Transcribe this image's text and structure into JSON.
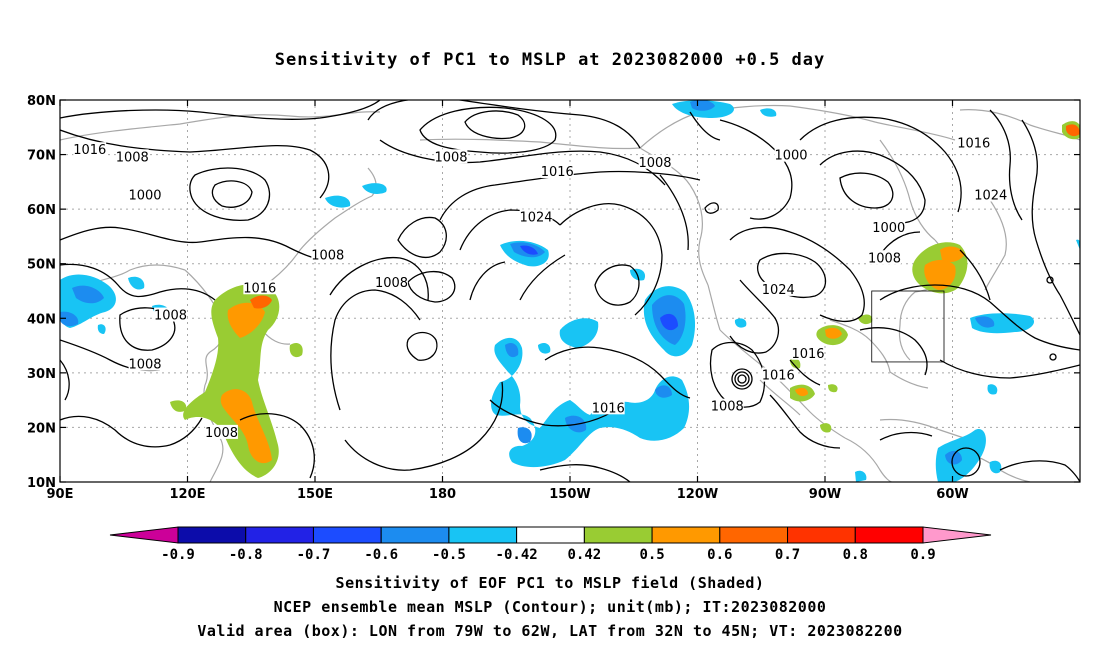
{
  "title": "Sensitivity of PC1 to MSLP at 2023082000 +0.5 day",
  "map": {
    "lat_labels": [
      "80N",
      "70N",
      "60N",
      "50N",
      "40N",
      "30N",
      "20N",
      "10N"
    ],
    "lon_labels": [
      "90E",
      "120E",
      "150E",
      "180",
      "150W",
      "120W",
      "90W",
      "60W"
    ],
    "contour_labels": [
      {
        "text": "1016",
        "lon": 97,
        "lat": 70.8
      },
      {
        "text": "1008",
        "lon": 107,
        "lat": 69.5
      },
      {
        "text": "1000",
        "lon": 110,
        "lat": 62.5
      },
      {
        "text": "1008",
        "lon": -178,
        "lat": 69.5
      },
      {
        "text": "1016",
        "lon": -153,
        "lat": 66.8
      },
      {
        "text": "1008",
        "lon": -130,
        "lat": 68.5
      },
      {
        "text": "1000",
        "lon": -98,
        "lat": 69.8
      },
      {
        "text": "1016",
        "lon": -55,
        "lat": 72
      },
      {
        "text": "1024",
        "lon": -51,
        "lat": 62.5
      },
      {
        "text": "1000",
        "lon": -75,
        "lat": 56.5
      },
      {
        "text": "1024",
        "lon": -158,
        "lat": 58.5
      },
      {
        "text": "1008",
        "lon": 153,
        "lat": 51.5
      },
      {
        "text": "1008",
        "lon": 168,
        "lat": 46.5
      },
      {
        "text": "1016",
        "lon": 137,
        "lat": 45.5
      },
      {
        "text": "1008",
        "lon": -76,
        "lat": 51
      },
      {
        "text": "1024",
        "lon": -101,
        "lat": 45.2
      },
      {
        "text": "1008",
        "lon": 116,
        "lat": 40.5
      },
      {
        "text": "1008",
        "lon": 110,
        "lat": 31.5
      },
      {
        "text": "1016",
        "lon": -94,
        "lat": 33.5
      },
      {
        "text": "1016",
        "lon": -101,
        "lat": 29.5
      },
      {
        "text": "1008",
        "lon": -113,
        "lat": 23.8
      },
      {
        "text": "1016",
        "lon": -141,
        "lat": 23.5
      },
      {
        "text": "1008",
        "lon": 128,
        "lat": 19
      }
    ],
    "valid_box": {
      "lon_w": -79,
      "lon_e": -62,
      "lat_s": 32,
      "lat_n": 45
    }
  },
  "colorbar": {
    "labels": [
      "-0.9",
      "-0.8",
      "-0.7",
      "-0.6",
      "-0.5",
      "-0.42",
      "0.42",
      "0.5",
      "0.6",
      "0.7",
      "0.8",
      "0.9"
    ],
    "colors": [
      "#0c0caa",
      "#2222e6",
      "#1c4cff",
      "#1c8cf0",
      "#18c4f4",
      "#ffffff",
      "#99cc33",
      "#ff9900",
      "#ff6600",
      "#ff3300",
      "#ff0000"
    ],
    "end_low": "#cc0099",
    "end_high": "#ff99cc"
  },
  "captions": [
    "Sensitivity of EOF PC1 to MSLP field (Shaded)",
    "NCEP ensemble mean MSLP (Contour); unit(mb); IT:2023082000",
    "Valid area (box): LON from 79W to 62W, LAT from 32N to 45N; VT: 2023082200"
  ]
}
